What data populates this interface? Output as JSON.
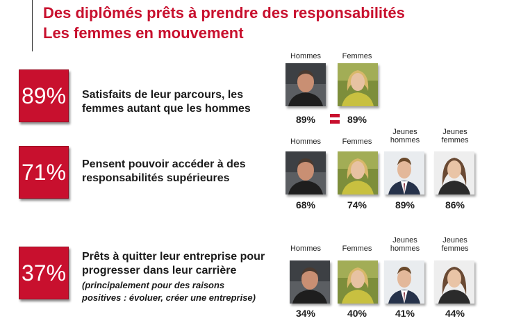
{
  "title": {
    "line1": "Des diplômés prêts à prendre des responsabilités",
    "line2": "Les femmes en mouvement"
  },
  "rows": [
    {
      "percent": "89%",
      "text_line1": "Satisfaits de leur parcours, les",
      "text_line2": "femmes autant que les hommes",
      "groups": [
        {
          "label": "Hommes",
          "value": "89%",
          "icon": "man-photo"
        },
        {
          "label": "Femmes",
          "value": "89%",
          "icon": "woman-photo"
        }
      ]
    },
    {
      "percent": "71%",
      "text_line1": "Pensent pouvoir accéder à des",
      "text_line2": "responsabilités supérieures",
      "groups": [
        {
          "label": "Hommes",
          "value": "68%",
          "icon": "man-photo"
        },
        {
          "label": "Femmes",
          "value": "74%",
          "icon": "woman-photo"
        },
        {
          "label_line1": "Jeunes",
          "label_line2": "hommes",
          "value": "89%",
          "icon": "young-man-photo"
        },
        {
          "label_line1": "Jeunes",
          "label_line2": "femmes",
          "value": "86%",
          "icon": "young-woman-photo"
        }
      ]
    },
    {
      "percent": "37%",
      "text_line1": "Prêts à quitter leur entreprise pour",
      "text_line2": "progresser dans leur carrière",
      "note_line1": "(principalement pour des raisons",
      "note_line2": "positives : évoluer, créer une entreprise)",
      "groups": [
        {
          "label": "Hommes",
          "value": "34%",
          "icon": "man-photo"
        },
        {
          "label": "Femmes",
          "value": "40%",
          "icon": "woman-photo"
        },
        {
          "label_line1": "Jeunes",
          "label_line2": "hommes",
          "value": "41%",
          "icon": "young-man-photo"
        },
        {
          "label_line1": "Jeunes",
          "label_line2": "femmes",
          "value": "44%",
          "icon": "young-woman-photo"
        }
      ]
    }
  ],
  "colors": {
    "accent": "#c8102e"
  }
}
